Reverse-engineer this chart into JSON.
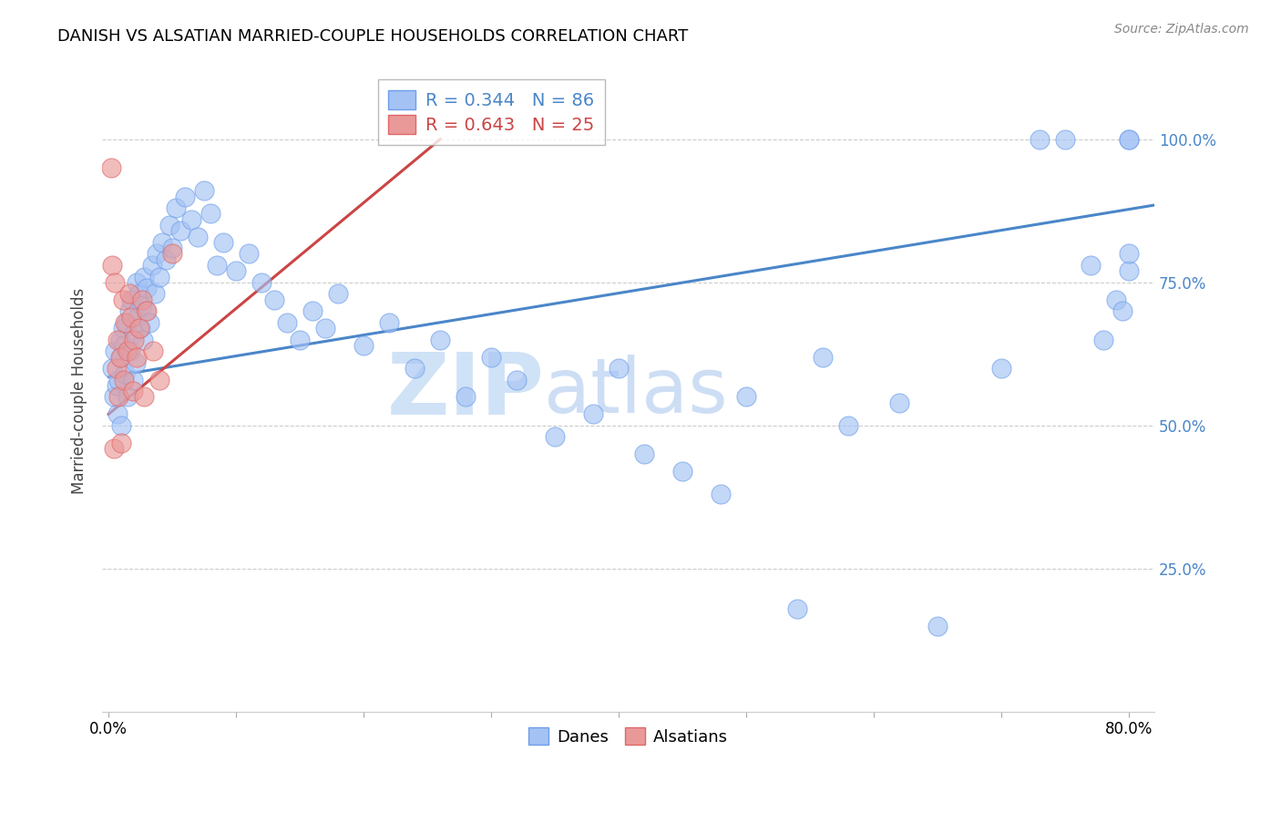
{
  "title": "DANISH VS ALSATIAN MARRIED-COUPLE HOUSEHOLDS CORRELATION CHART",
  "source": "Source: ZipAtlas.com",
  "ylabel": "Married-couple Households",
  "ytick_labels": [
    "100.0%",
    "75.0%",
    "50.0%",
    "25.0%"
  ],
  "ytick_positions": [
    1.0,
    0.75,
    0.5,
    0.25
  ],
  "xlim": [
    -0.005,
    0.82
  ],
  "ylim": [
    0.0,
    1.12
  ],
  "blue_legend_label": "Danes",
  "pink_legend_label": "Alsatians",
  "blue_R": "0.344",
  "blue_N": "86",
  "pink_R": "0.643",
  "pink_N": "25",
  "blue_color": "#a4c2f4",
  "pink_color": "#ea9999",
  "blue_edge_color": "#6d9eeb",
  "pink_edge_color": "#e06666",
  "blue_line_color": "#4a86c8",
  "pink_line_color": "#cc4444",
  "watermark": "ZIPatlas",
  "danes_x": [
    0.003,
    0.004,
    0.005,
    0.006,
    0.007,
    0.008,
    0.009,
    0.01,
    0.01,
    0.011,
    0.012,
    0.013,
    0.014,
    0.015,
    0.016,
    0.017,
    0.018,
    0.019,
    0.02,
    0.021,
    0.022,
    0.023,
    0.024,
    0.025,
    0.026,
    0.027,
    0.028,
    0.029,
    0.03,
    0.032,
    0.034,
    0.036,
    0.038,
    0.04,
    0.042,
    0.045,
    0.048,
    0.05,
    0.053,
    0.056,
    0.06,
    0.065,
    0.07,
    0.075,
    0.08,
    0.085,
    0.09,
    0.1,
    0.11,
    0.12,
    0.13,
    0.14,
    0.15,
    0.16,
    0.17,
    0.18,
    0.2,
    0.22,
    0.24,
    0.26,
    0.28,
    0.3,
    0.32,
    0.35,
    0.38,
    0.4,
    0.42,
    0.45,
    0.48,
    0.5,
    0.54,
    0.56,
    0.58,
    0.62,
    0.65,
    0.7,
    0.73,
    0.75,
    0.77,
    0.78,
    0.79,
    0.795,
    0.8,
    0.8,
    0.8,
    0.8
  ],
  "danes_y": [
    0.6,
    0.55,
    0.63,
    0.57,
    0.52,
    0.58,
    0.65,
    0.62,
    0.5,
    0.67,
    0.64,
    0.59,
    0.68,
    0.55,
    0.7,
    0.63,
    0.72,
    0.58,
    0.66,
    0.61,
    0.75,
    0.69,
    0.73,
    0.67,
    0.71,
    0.65,
    0.76,
    0.7,
    0.74,
    0.68,
    0.78,
    0.73,
    0.8,
    0.76,
    0.82,
    0.79,
    0.85,
    0.81,
    0.88,
    0.84,
    0.9,
    0.86,
    0.83,
    0.91,
    0.87,
    0.78,
    0.82,
    0.77,
    0.8,
    0.75,
    0.72,
    0.68,
    0.65,
    0.7,
    0.67,
    0.73,
    0.64,
    0.68,
    0.6,
    0.65,
    0.55,
    0.62,
    0.58,
    0.48,
    0.52,
    0.6,
    0.45,
    0.42,
    0.38,
    0.55,
    0.18,
    0.62,
    0.5,
    0.54,
    0.15,
    0.6,
    1.0,
    1.0,
    0.78,
    0.65,
    0.72,
    0.7,
    0.77,
    1.0,
    1.0,
    0.8
  ],
  "alsatians_x": [
    0.002,
    0.003,
    0.004,
    0.005,
    0.006,
    0.007,
    0.008,
    0.009,
    0.01,
    0.011,
    0.012,
    0.013,
    0.015,
    0.016,
    0.018,
    0.019,
    0.02,
    0.022,
    0.024,
    0.026,
    0.028,
    0.03,
    0.035,
    0.04,
    0.05
  ],
  "alsatians_y": [
    0.95,
    0.78,
    0.46,
    0.75,
    0.6,
    0.65,
    0.55,
    0.62,
    0.47,
    0.72,
    0.58,
    0.68,
    0.63,
    0.73,
    0.69,
    0.56,
    0.65,
    0.62,
    0.67,
    0.72,
    0.55,
    0.7,
    0.63,
    0.58,
    0.8
  ],
  "blue_line_x": [
    0.0,
    0.82
  ],
  "blue_line_y": [
    0.585,
    0.885
  ],
  "pink_line_x": [
    0.0,
    0.26
  ],
  "pink_line_y": [
    0.52,
    1.0
  ]
}
